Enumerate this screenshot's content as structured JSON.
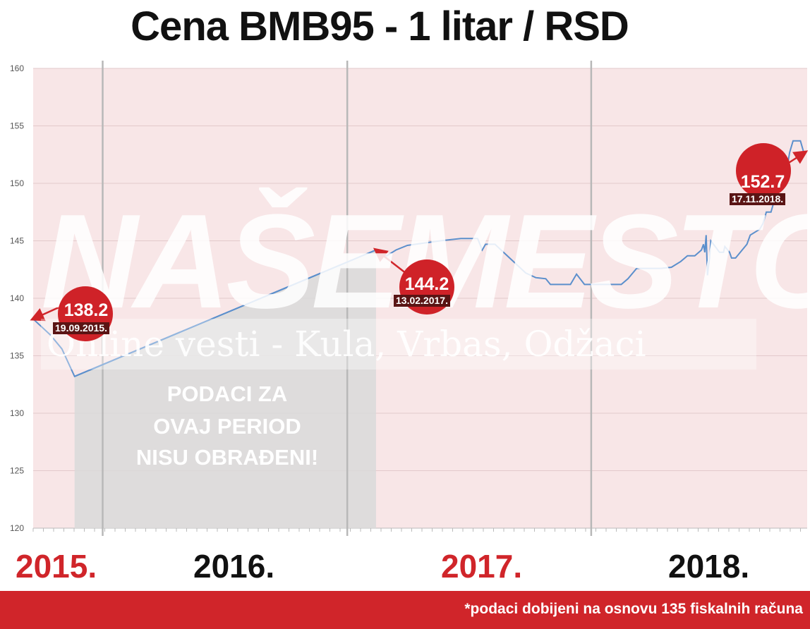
{
  "title": "Cena BMB95 - 1 litar / RSD",
  "footer_note": "*podaci dobijeni na osnovu 135 fiskalnih računa",
  "years": [
    {
      "label": "2015.",
      "color": "#d0252a"
    },
    {
      "label": "2016.",
      "color": "#111111"
    },
    {
      "label": "2017.",
      "color": "#d0252a"
    },
    {
      "label": "2018.",
      "color": "#111111"
    }
  ],
  "no_data_notice": [
    "PODACI ZA",
    "OVAJ PERIOD",
    "NISU OBRAĐENI!"
  ],
  "watermark": {
    "brand": "NAŠEMESTO",
    "tagline": "Online vesti - Kula, Vrbas, Odžaci"
  },
  "callouts": [
    {
      "value": "138.2",
      "date": "19.09.2015."
    },
    {
      "value": "144.2",
      "date": "13.02.2017."
    },
    {
      "value": "152.7",
      "date": "17.11.2018."
    }
  ],
  "colors": {
    "plot_bg": "#f8e6e7",
    "line": "#5b8fcc",
    "accent": "#d0252a",
    "shade": "#d9d9d9"
  },
  "chart_data": {
    "type": "line",
    "title": "Cena BMB95 - 1 litar / RSD",
    "xlabel": "",
    "ylabel": "",
    "x_range": [
      "2015-09-19",
      "2018-11-17"
    ],
    "ylim": [
      120,
      160
    ],
    "yticks": [
      120,
      125,
      130,
      135,
      140,
      145,
      150,
      155,
      160
    ],
    "grid": true,
    "gap": {
      "from": "2015-11-20",
      "to": "2017-02-13",
      "label": "PODACI ZA OVAJ PERIOD NISU OBRAĐENI!"
    },
    "series": [
      {
        "values": [
          [
            "2015-09-19",
            138.2
          ],
          [
            "2015-10-15",
            136.8
          ],
          [
            "2015-11-01",
            135.6
          ],
          [
            "2015-11-20",
            133.2
          ],
          [
            "2017-02-13",
            144.2
          ],
          [
            "2017-03-01",
            143.7
          ],
          [
            "2017-03-15",
            144.2
          ],
          [
            "2017-04-01",
            144.6
          ],
          [
            "2017-05-20",
            145.0
          ],
          [
            "2017-06-20",
            145.2
          ],
          [
            "2017-07-15",
            145.2
          ],
          [
            "2017-07-22",
            144.2
          ],
          [
            "2017-07-27",
            144.7
          ],
          [
            "2017-08-10",
            144.7
          ],
          [
            "2017-09-01",
            143.5
          ],
          [
            "2017-09-25",
            142.2
          ],
          [
            "2017-10-10",
            141.8
          ],
          [
            "2017-10-25",
            141.7
          ],
          [
            "2017-11-01",
            141.2
          ],
          [
            "2017-12-01",
            141.2
          ],
          [
            "2017-12-10",
            142.1
          ],
          [
            "2017-12-22",
            141.2
          ],
          [
            "2018-02-15",
            141.2
          ],
          [
            "2018-02-25",
            141.7
          ],
          [
            "2018-03-10",
            142.6
          ],
          [
            "2018-04-15",
            142.6
          ],
          [
            "2018-05-01",
            142.7
          ],
          [
            "2018-05-15",
            143.2
          ],
          [
            "2018-05-25",
            143.7
          ],
          [
            "2018-06-05",
            143.7
          ],
          [
            "2018-06-15",
            144.2
          ],
          [
            "2018-06-18",
            144.7
          ],
          [
            "2018-06-20",
            144.0
          ],
          [
            "2018-06-22",
            145.5
          ],
          [
            "2018-06-24",
            142.0
          ],
          [
            "2018-06-27",
            143.5
          ],
          [
            "2018-06-29",
            145.0
          ],
          [
            "2018-07-03",
            144.7
          ],
          [
            "2018-07-12",
            144.0
          ],
          [
            "2018-07-18",
            144.0
          ],
          [
            "2018-07-20",
            144.5
          ],
          [
            "2018-07-27",
            144.0
          ],
          [
            "2018-07-30",
            143.5
          ],
          [
            "2018-08-05",
            143.5
          ],
          [
            "2018-08-22",
            144.7
          ],
          [
            "2018-08-27",
            145.5
          ],
          [
            "2018-09-10",
            146.0
          ],
          [
            "2018-09-15",
            146.5
          ],
          [
            "2018-09-20",
            147.5
          ],
          [
            "2018-09-27",
            147.5
          ],
          [
            "2018-10-02",
            148.5
          ],
          [
            "2018-10-08",
            149.2
          ],
          [
            "2018-10-13",
            149.6
          ],
          [
            "2018-10-16",
            150.2
          ],
          [
            "2018-10-20",
            151.0
          ],
          [
            "2018-10-25",
            152.7
          ],
          [
            "2018-10-30",
            153.7
          ],
          [
            "2018-11-10",
            153.7
          ],
          [
            "2018-11-15",
            152.7
          ],
          [
            "2018-11-17",
            152.7
          ]
        ]
      }
    ]
  }
}
